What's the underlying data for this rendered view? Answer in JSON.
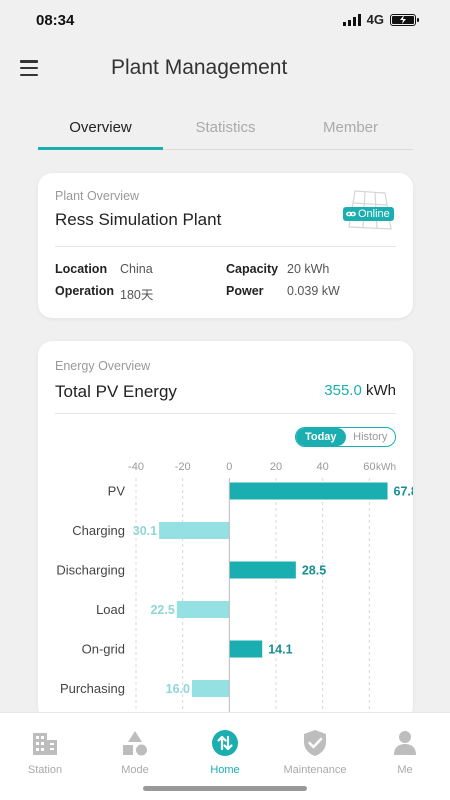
{
  "status_bar": {
    "time": "08:34",
    "network": "4G"
  },
  "header": {
    "title": "Plant Management"
  },
  "tabs": [
    {
      "label": "Overview",
      "active": true
    },
    {
      "label": "Statistics",
      "active": false
    },
    {
      "label": "Member",
      "active": false
    }
  ],
  "plant_overview": {
    "section_label": "Plant Overview",
    "name": "Ress Simulation Plant",
    "status": "Online",
    "location_label": "Location",
    "location_value": "China",
    "operation_label": "Operation",
    "operation_value": "180天",
    "capacity_label": "Capacity",
    "capacity_value": "20 kWh",
    "power_label": "Power",
    "power_value": "0.039 kW"
  },
  "energy_overview": {
    "section_label": "Energy Overview",
    "title": "Total PV Energy",
    "total_value": "355.0",
    "total_unit": "kWh",
    "toggle": {
      "today": "Today",
      "history": "History",
      "selected": "Today"
    }
  },
  "chart_data": {
    "type": "bar",
    "orientation": "horizontal",
    "categories": [
      "PV",
      "Charging",
      "Discharging",
      "Load",
      "On-grid",
      "Purchasing"
    ],
    "values": [
      67.8,
      -30.1,
      28.5,
      -22.5,
      14.1,
      -16.0
    ],
    "value_labels": [
      "67.8",
      "30.1",
      "28.5",
      "22.5",
      "14.1",
      "16.0"
    ],
    "xticks": [
      "-40",
      "-20",
      "0",
      "20",
      "40",
      "60"
    ],
    "xtick_values": [
      -40,
      -20,
      0,
      20,
      40,
      60
    ],
    "unit": "kWh",
    "xlim": [
      -40,
      80
    ],
    "grid": true,
    "colors": {
      "positive": "#1aaeb0",
      "negative": "#94e0e2",
      "positive_label": "#158f91",
      "negative_label": "#8fd6d8"
    }
  },
  "bottom_nav": [
    {
      "label": "Station",
      "icon": "station-building-icon",
      "active": false
    },
    {
      "label": "Mode",
      "icon": "mode-shapes-icon",
      "active": false
    },
    {
      "label": "Home",
      "icon": "home-swap-icon",
      "active": true
    },
    {
      "label": "Maintenance",
      "icon": "maintenance-shield-icon",
      "active": false
    },
    {
      "label": "Me",
      "icon": "me-person-icon",
      "active": false
    }
  ],
  "colors": {
    "accent": "#1aaeb0",
    "background": "#f0f0f0"
  }
}
